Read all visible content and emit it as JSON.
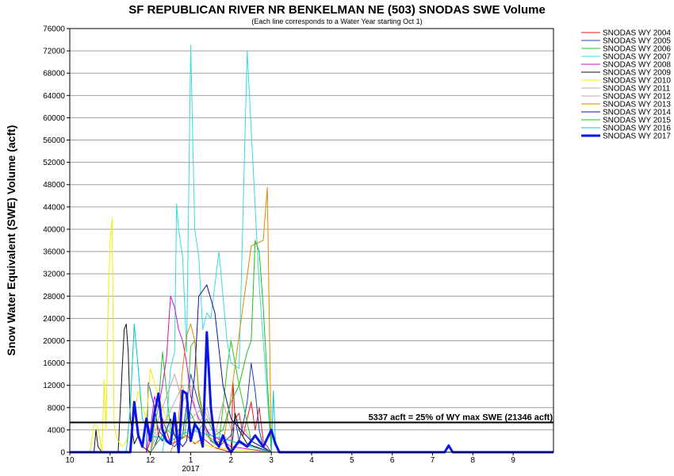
{
  "chart_data": {
    "type": "line",
    "title": "SF REPUBLICAN RIVER NR BENKELMAN NE (503) SNODAS SWE Volume",
    "subtitle": "(Each line corresponds to a Water Year starting Oct 1)",
    "ylabel": "Snow Water Equivalent (SWE) Volume (acft)",
    "xlabel": "",
    "ylim": [
      0,
      76000
    ],
    "ytick_step": 4000,
    "xlim": [
      0,
      12
    ],
    "x_unit": "months since Oct 1",
    "x_tick_labels": [
      "10",
      "11",
      "12",
      "1",
      "2",
      "3",
      "4",
      "5",
      "6",
      "7",
      "8",
      "9"
    ],
    "x_year_label": "2017",
    "grid": "horizontal",
    "legend_position": "right",
    "threshold": {
      "value": 5337,
      "label": "5337 acft = 25% of WY max SWE (21346 acft)"
    },
    "series": [
      {
        "name": "SNODAS WY 2004",
        "color": "#e31a1c",
        "width": 1,
        "x": [
          0,
          1.9,
          2.0,
          2.1,
          2.2,
          2.3,
          2.5,
          2.7,
          2.9,
          3.1,
          3.3,
          3.6,
          4.0,
          4.05,
          4.1,
          4.2,
          4.3,
          4.5,
          4.6,
          4.7,
          4.8,
          5.0
        ],
        "y": [
          0,
          0,
          2000,
          8000,
          3000,
          6000,
          1500,
          2000,
          3000,
          1500,
          2500,
          800,
          0,
          12500,
          6000,
          7000,
          3000,
          9000,
          4000,
          8000,
          2000,
          0
        ]
      },
      {
        "name": "SNODAS WY 2005",
        "color": "#1f3fbf",
        "width": 1,
        "x": [
          0,
          1.9,
          1.95,
          2.0,
          2.1,
          2.2,
          2.4,
          2.6,
          2.8,
          3.0,
          3.3,
          3.5,
          3.7,
          4.0,
          4.1,
          4.2,
          4.3,
          4.4,
          4.5,
          4.6,
          4.7,
          4.8,
          5.0
        ],
        "y": [
          0,
          0,
          12500,
          11000,
          8000,
          4000,
          2000,
          1000,
          3000,
          14000,
          6000,
          2000,
          1000,
          3000,
          6000,
          2000,
          5000,
          9000,
          16000,
          11000,
          4000,
          1000,
          0
        ]
      },
      {
        "name": "SNODAS WY 2006",
        "color": "#22cc22",
        "width": 1,
        "x": [
          0,
          2.0,
          2.1,
          2.2,
          2.3,
          2.5,
          2.7,
          2.85,
          2.9,
          3.0,
          3.1,
          3.2,
          3.4,
          3.6,
          3.7,
          3.8,
          3.9,
          4.0,
          4.2,
          4.5,
          5.0
        ],
        "y": [
          0,
          0,
          5000,
          8000,
          18000,
          4000,
          2000,
          3000,
          6000,
          19000,
          20000,
          11000,
          3000,
          1500,
          2000,
          8000,
          15000,
          20000,
          12000,
          2000,
          0
        ]
      },
      {
        "name": "SNODAS WY 2007",
        "color": "#33dddd",
        "width": 1,
        "x": [
          0,
          2.3,
          2.4,
          2.5,
          2.6,
          2.65,
          2.7,
          2.8,
          2.9,
          3.0,
          3.1,
          3.2,
          3.3,
          3.4,
          3.5,
          3.7,
          3.9,
          4.0,
          4.2,
          4.4,
          4.7,
          5.0
        ],
        "y": [
          0,
          0,
          5000,
          15000,
          18000,
          44500,
          40000,
          35000,
          18000,
          73000,
          40000,
          35000,
          22000,
          25000,
          24000,
          36000,
          20000,
          16000,
          15000,
          72000,
          30000,
          0
        ]
      },
      {
        "name": "SNODAS WY 2008",
        "color": "#cc11cc",
        "width": 1,
        "x": [
          0,
          1.9,
          2.0,
          2.1,
          2.2,
          2.3,
          2.4,
          2.5,
          2.6,
          2.7,
          2.8,
          2.9,
          3.0,
          3.1,
          3.2,
          3.5,
          3.8,
          4.0,
          4.5,
          5.0
        ],
        "y": [
          0,
          0,
          4000,
          10000,
          8000,
          12000,
          17000,
          28000,
          26000,
          22000,
          20000,
          16000,
          10000,
          8000,
          6000,
          3000,
          2000,
          1000,
          500,
          0
        ]
      },
      {
        "name": "SNODAS WY 2009",
        "color": "#111111",
        "width": 1,
        "x": [
          0,
          0.6,
          0.65,
          0.7,
          0.8,
          1.2,
          1.3,
          1.35,
          1.4,
          1.45,
          1.5,
          1.6,
          1.7,
          1.8,
          2.0,
          3.0,
          4.0,
          4.05,
          4.1,
          4.2,
          4.4,
          5.0
        ],
        "y": [
          0,
          0,
          4000,
          1000,
          0,
          0,
          15000,
          22000,
          23000,
          18000,
          6000,
          1500,
          3000,
          1000,
          0,
          0,
          0,
          3000,
          7000,
          4000,
          1500,
          0
        ]
      },
      {
        "name": "SNODAS WY 2010",
        "color": "#f0f000",
        "width": 1,
        "x": [
          0,
          0.5,
          0.6,
          0.7,
          0.8,
          0.85,
          0.9,
          0.95,
          1.0,
          1.05,
          1.1,
          1.15,
          1.2,
          1.3,
          1.5,
          1.7,
          1.8,
          1.9,
          2.0,
          2.2,
          2.4,
          2.6,
          2.8,
          3.0,
          3.5,
          4.0,
          5.0
        ],
        "y": [
          0,
          0,
          5000,
          4500,
          0,
          13000,
          4000,
          26000,
          38000,
          42000,
          5000,
          3000,
          2000,
          1000,
          3000,
          11000,
          8000,
          6000,
          15000,
          10000,
          6000,
          5000,
          3000,
          2000,
          1000,
          500,
          0
        ]
      },
      {
        "name": "SNODAS WY 2011",
        "color": "#b0b0b0",
        "width": 1,
        "x": [
          0,
          2.0,
          2.2,
          2.4,
          2.6,
          2.8,
          3.0,
          3.3,
          3.6,
          4.0,
          4.5,
          5.0
        ],
        "y": [
          0,
          0,
          4000,
          6000,
          9000,
          12000,
          6000,
          8000,
          4000,
          2000,
          1000,
          0
        ]
      },
      {
        "name": "SNODAS WY 2012",
        "color": "#d0a0a0",
        "width": 1,
        "x": [
          0,
          2.0,
          2.2,
          2.4,
          2.6,
          2.8,
          3.0,
          3.2,
          3.4,
          3.6,
          3.8,
          4.0,
          4.2,
          4.5,
          5.0
        ],
        "y": [
          0,
          0,
          6000,
          10000,
          14000,
          9000,
          12000,
          5000,
          8000,
          3000,
          9000,
          4000,
          6000,
          2000,
          0
        ]
      },
      {
        "name": "SNODAS WY 2013",
        "color": "#e08a00",
        "width": 1,
        "x": [
          0,
          2.5,
          2.6,
          2.7,
          2.8,
          2.9,
          3.0,
          3.1,
          3.2,
          3.4,
          3.6,
          3.8,
          4.0,
          4.2,
          4.5,
          4.8,
          4.9,
          5.0
        ],
        "y": [
          0,
          0,
          2000,
          6000,
          15000,
          21000,
          23000,
          20000,
          10000,
          3000,
          2000,
          1500,
          10000,
          21000,
          37000,
          38000,
          47500,
          0
        ]
      },
      {
        "name": "SNODAS WY 2014",
        "color": "#1010a0",
        "width": 1,
        "x": [
          0,
          2.0,
          2.1,
          2.2,
          2.3,
          2.4,
          2.5,
          2.6,
          2.7,
          2.8,
          2.9,
          3.0,
          3.1,
          3.2,
          3.4,
          3.6,
          3.8,
          4.0,
          4.5,
          5.0
        ],
        "y": [
          0,
          0,
          1000,
          3000,
          2000,
          4000,
          6000,
          3000,
          2000,
          1000,
          2000,
          8000,
          14000,
          28000,
          30000,
          25000,
          12000,
          6000,
          2000,
          0
        ]
      },
      {
        "name": "SNODAS WY 2015",
        "color": "#22bb22",
        "width": 1,
        "x": [
          0,
          2.0,
          2.2,
          2.4,
          2.6,
          2.8,
          3.0,
          3.2,
          3.4,
          3.6,
          3.8,
          4.0,
          4.2,
          4.4,
          4.5,
          4.6,
          4.7,
          4.8,
          5.0
        ],
        "y": [
          0,
          0,
          2000,
          4000,
          3000,
          5000,
          7000,
          4000,
          6000,
          3000,
          4000,
          9000,
          12000,
          18000,
          20000,
          38000,
          36000,
          26000,
          0
        ]
      },
      {
        "name": "SNODAS WY 2016",
        "color": "#00c8c8",
        "width": 1,
        "x": [
          0,
          1.4,
          1.5,
          1.6,
          1.7,
          1.8,
          2.0,
          2.5,
          3.0,
          3.5,
          4.0,
          4.5,
          5.0,
          5.05,
          5.1,
          5.2
        ],
        "y": [
          0,
          0,
          8000,
          23000,
          15000,
          6000,
          3000,
          2000,
          4000,
          3000,
          2000,
          1000,
          0,
          11000,
          2000,
          0
        ]
      },
      {
        "name": "SNODAS WY 2017",
        "color": "#0a14e6",
        "width": 3,
        "x": [
          0,
          1.5,
          1.6,
          1.7,
          1.8,
          1.9,
          2.0,
          2.1,
          2.2,
          2.3,
          2.4,
          2.5,
          2.6,
          2.7,
          2.8,
          2.9,
          3.0,
          3.1,
          3.2,
          3.3,
          3.4,
          3.5,
          3.6,
          3.7,
          3.8,
          3.9,
          4.0,
          4.2,
          4.4,
          4.6,
          4.8,
          5.0,
          5.1,
          5.2,
          6.0,
          8.0,
          9.3,
          9.4,
          9.5,
          12.0
        ],
        "y": [
          0,
          0,
          9000,
          3000,
          1000,
          6000,
          2000,
          7000,
          10500,
          4000,
          2000,
          1500,
          7000,
          0,
          11000,
          10500,
          2000,
          5000,
          4000,
          1000,
          21500,
          8000,
          2000,
          1000,
          3000,
          1000,
          0,
          2000,
          1000,
          3000,
          1000,
          4000,
          1500,
          0,
          0,
          0,
          0,
          1200,
          0,
          0
        ]
      }
    ]
  }
}
